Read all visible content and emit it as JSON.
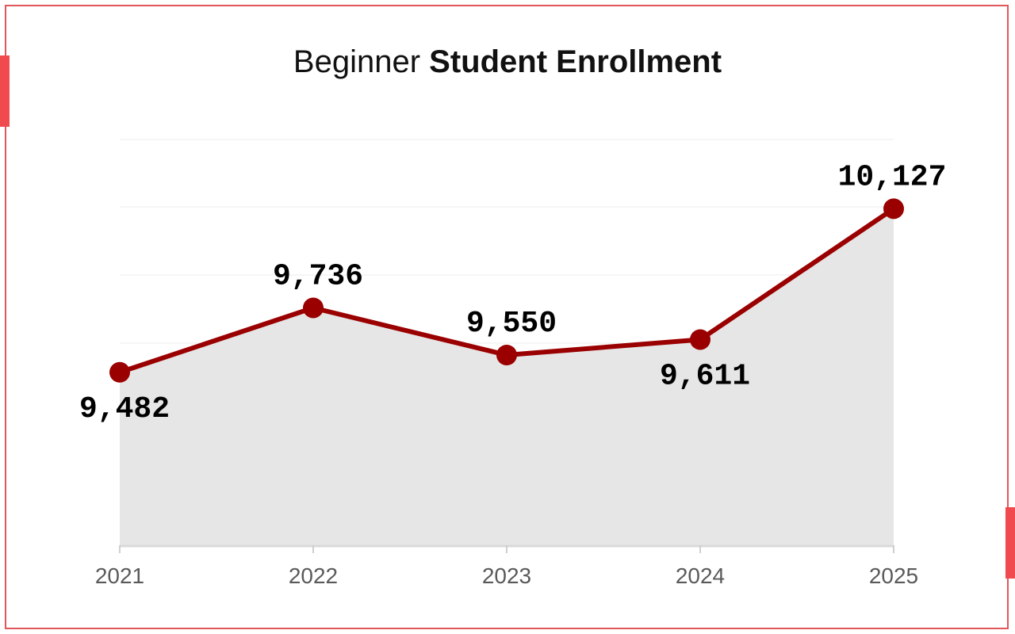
{
  "title": {
    "normal": "Beginner",
    "bold": "Student Enrollment"
  },
  "colors": {
    "line": "#9a0000",
    "area": "#e6e6e6",
    "frame": "#e0575c",
    "tab": "#f04a4f"
  },
  "chart_data": {
    "type": "area",
    "categories": [
      "2021",
      "2022",
      "2023",
      "2024",
      "2025"
    ],
    "values": [
      9482,
      9736,
      9550,
      9611,
      10127
    ],
    "data_labels": [
      "9,482",
      "9,736",
      "9,550",
      "9,611",
      "10,127"
    ],
    "xlabel": "",
    "ylabel": "",
    "ylim": [
      8800,
      10400
    ],
    "y_ticks_labeled": false,
    "grid": true,
    "legend": "none"
  }
}
